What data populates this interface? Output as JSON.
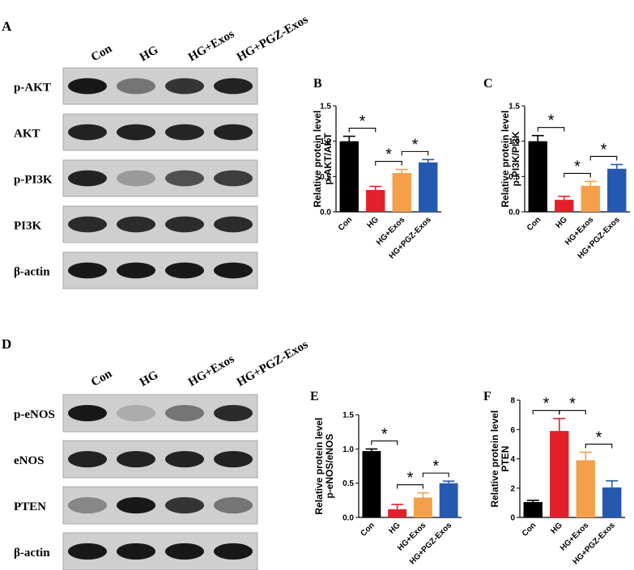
{
  "panel_letters": {
    "a": "A",
    "b": "B",
    "c": "C",
    "d": "D",
    "e": "E",
    "f": "F"
  },
  "blot_top": {
    "lanes": [
      "Con",
      "HG",
      "HG+Exos",
      "HG+PGZ-Exos"
    ],
    "rows": [
      {
        "label": "p-AKT",
        "intensities": [
          0.95,
          0.45,
          0.8,
          0.9
        ]
      },
      {
        "label": "AKT",
        "intensities": [
          0.9,
          0.9,
          0.88,
          0.9
        ]
      },
      {
        "label": "p-PI3K",
        "intensities": [
          0.9,
          0.25,
          0.65,
          0.75
        ]
      },
      {
        "label": "PI3K",
        "intensities": [
          0.85,
          0.85,
          0.85,
          0.85
        ]
      },
      {
        "label": "β-actin",
        "intensities": [
          0.95,
          0.95,
          0.95,
          0.95
        ]
      }
    ]
  },
  "blot_bottom": {
    "lanes": [
      "Con",
      "HG",
      "HG+Exos",
      "HG+PGZ-Exos"
    ],
    "rows": [
      {
        "label": "p-eNOS",
        "intensities": [
          0.95,
          0.15,
          0.45,
          0.85
        ]
      },
      {
        "label": "eNOS",
        "intensities": [
          0.9,
          0.9,
          0.9,
          0.9
        ]
      },
      {
        "label": "PTEN",
        "intensities": [
          0.35,
          0.95,
          0.8,
          0.45
        ]
      },
      {
        "label": "β-actin",
        "intensities": [
          0.95,
          0.95,
          0.95,
          0.95
        ]
      }
    ]
  },
  "colors": {
    "con": "#000000",
    "hg": "#e2202a",
    "hg_exos": "#f4a04a",
    "hg_pgz_exos": "#2559b0"
  },
  "significance_mark": "*",
  "chart_data": [
    {
      "panel": "B",
      "type": "bar",
      "categories": [
        "Con",
        "HG",
        "HG+Exos",
        "HG+PGZ-Exos"
      ],
      "values": [
        1.0,
        0.31,
        0.55,
        0.7
      ],
      "errors": [
        0.07,
        0.05,
        0.05,
        0.04
      ],
      "ylabel": [
        "Relative protein level",
        "p-AKT/AKT"
      ],
      "ylim": [
        0,
        1.5
      ],
      "yticks": [
        "0.0",
        "0.5",
        "1.0",
        "1.5"
      ],
      "significance": [
        [
          0,
          1
        ],
        [
          1,
          2
        ],
        [
          2,
          3
        ]
      ]
    },
    {
      "panel": "C",
      "type": "bar",
      "categories": [
        "Con",
        "HG",
        "HG+Exos",
        "HG+PGZ-Exos"
      ],
      "values": [
        1.0,
        0.17,
        0.37,
        0.61
      ],
      "errors": [
        0.08,
        0.05,
        0.06,
        0.06
      ],
      "ylabel": [
        "Relative protein level",
        "p-PI3K/PI3K"
      ],
      "ylim": [
        0,
        1.5
      ],
      "yticks": [
        "0.0",
        "0.5",
        "1.0",
        "1.5"
      ],
      "significance": [
        [
          0,
          1
        ],
        [
          1,
          2
        ],
        [
          2,
          3
        ]
      ]
    },
    {
      "panel": "E",
      "type": "bar",
      "categories": [
        "Con",
        "HG",
        "HG+Exos",
        "HG+PGZ-Exos"
      ],
      "values": [
        0.97,
        0.12,
        0.29,
        0.5
      ],
      "errors": [
        0.03,
        0.07,
        0.07,
        0.03
      ],
      "ylabel": [
        "Relative protein level",
        "p-eNOS/eNOS"
      ],
      "ylim": [
        0,
        1.5
      ],
      "yticks": [
        "0.0",
        "0.5",
        "1.0",
        "1.5"
      ],
      "significance": [
        [
          0,
          1
        ],
        [
          1,
          2
        ],
        [
          2,
          3
        ]
      ]
    },
    {
      "panel": "F",
      "type": "bar",
      "categories": [
        "Con",
        "HG",
        "HG+Exos",
        "HG+PGZ-Exos"
      ],
      "values": [
        1.05,
        5.9,
        3.9,
        2.05
      ],
      "errors": [
        0.12,
        0.85,
        0.55,
        0.45
      ],
      "ylabel": [
        "Relative protein level",
        "PTEN"
      ],
      "ylim": [
        0,
        8
      ],
      "yticks": [
        "0",
        "2",
        "4",
        "6",
        "8"
      ],
      "significance": [
        [
          0,
          1
        ],
        [
          1,
          2
        ],
        [
          2,
          3
        ]
      ]
    }
  ]
}
